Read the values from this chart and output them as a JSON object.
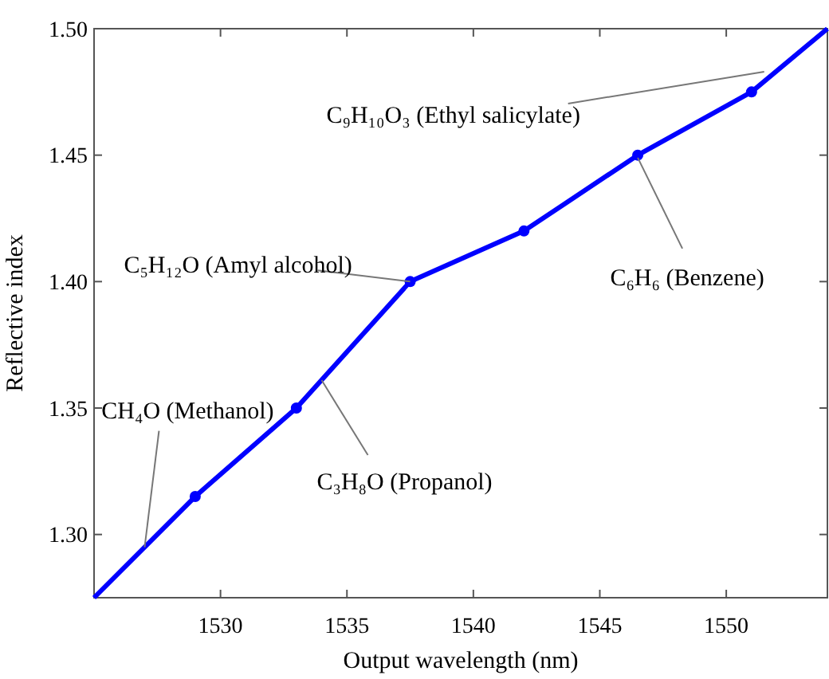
{
  "chart_data": {
    "type": "line",
    "xlabel": "Output wavelength (nm)",
    "ylabel": "Reflective index",
    "xlim": [
      1525,
      1554
    ],
    "xticks": [
      1530,
      1535,
      1540,
      1545,
      1550
    ],
    "ylim": [
      1.275,
      1.5
    ],
    "yticks": [
      {
        "value": 1.3,
        "label": "1.30"
      },
      1.35,
      {
        "value": 1.4,
        "label": "1.40"
      },
      1.45,
      {
        "value": 1.5,
        "label": "1.50"
      }
    ],
    "series": [
      {
        "color": "#0000ff",
        "marker": "none",
        "x": [
          1525,
          1529,
          1533,
          1537.5,
          1542,
          1546.5,
          1551,
          1554
        ],
        "values": [
          1.275,
          1.315,
          1.35,
          1.4,
          1.42,
          1.45,
          1.475,
          1.5
        ]
      },
      {
        "type": "scatter",
        "color": "#0000ff",
        "marker": "circle",
        "x": [
          1529,
          1533,
          1537.5,
          1542,
          1546.5,
          1551
        ],
        "values": [
          1.315,
          1.35,
          1.4,
          1.42,
          1.45,
          1.475
        ]
      }
    ],
    "annotations": [
      {
        "text": "CH₄O (Methanol)",
        "x": 1527,
        "y": 1.295
      },
      {
        "text": "C₃H₈O (Propanol)",
        "x": 1534,
        "y": 1.361
      },
      {
        "text": "C₅H₁₂O (Amyl alcohol)",
        "x": 1537.5,
        "y": 1.4
      },
      {
        "text": "C₆H₆ (Benzene)",
        "x": 1546.5,
        "y": 1.449
      },
      {
        "text": "C₉H₁₀O₃ (Ethyl salicylate)",
        "x": 1551.5,
        "y": 1.483
      }
    ],
    "grid": false
  }
}
